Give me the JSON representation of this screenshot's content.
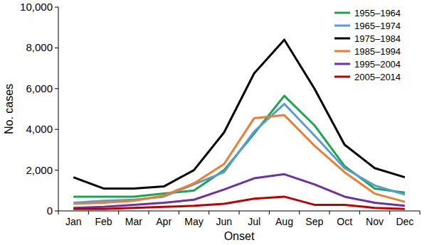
{
  "chart_data": {
    "type": "line",
    "x_label": "Onset",
    "y_label": "No. cases",
    "categories": [
      "Jan",
      "Feb",
      "Mar",
      "Apr",
      "May",
      "Jun",
      "Jul",
      "Aug",
      "Sep",
      "Oct",
      "Nov",
      "Dec"
    ],
    "series": [
      {
        "name": "1955–1964",
        "color": "#1aa64a",
        "values": [
          700,
          700,
          700,
          850,
          1000,
          2000,
          3800,
          5650,
          4200,
          2200,
          1100,
          900
        ]
      },
      {
        "name": "1965–1974",
        "color": "#5b9bd5",
        "values": [
          400,
          500,
          550,
          700,
          1300,
          1900,
          3900,
          5250,
          3700,
          2100,
          1250,
          800
        ]
      },
      {
        "name": "1975–1984",
        "color": "#000000",
        "values": [
          1650,
          1100,
          1100,
          1200,
          2000,
          3850,
          6750,
          8400,
          6000,
          3250,
          2100,
          1650
        ]
      },
      {
        "name": "1985–1994",
        "color": "#ed7d31",
        "values": [
          350,
          400,
          500,
          750,
          1350,
          2300,
          4550,
          4700,
          3200,
          1900,
          850,
          450
        ]
      },
      {
        "name": "1995–2004",
        "color": "#7030a0",
        "values": [
          150,
          200,
          300,
          400,
          550,
          1050,
          1600,
          1800,
          1300,
          700,
          400,
          250
        ]
      },
      {
        "name": "2005–2014",
        "color": "#c00000",
        "values": [
          100,
          100,
          150,
          200,
          250,
          350,
          600,
          700,
          300,
          300,
          150,
          100
        ]
      }
    ],
    "ylim": [
      0,
      10000
    ],
    "yticks": [
      0,
      {
        "value": 2000,
        "label": "2,000"
      },
      {
        "value": 4000,
        "label": "4,000"
      },
      {
        "value": 6000,
        "label": "6,000"
      },
      {
        "value": 8000,
        "label": "8,000"
      },
      {
        "value": 10000,
        "label": "10,000"
      }
    ],
    "grid": false,
    "legend": "top-right"
  }
}
